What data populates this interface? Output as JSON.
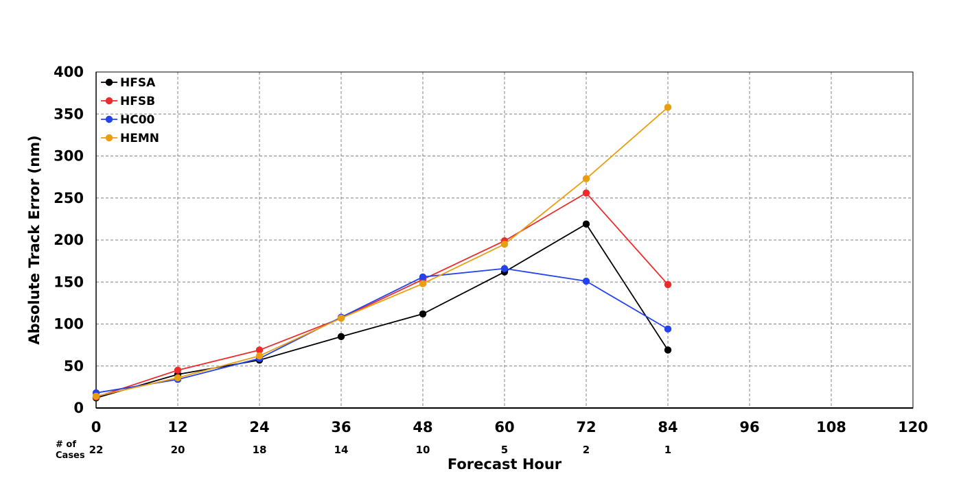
{
  "chart_data": {
    "type": "line",
    "title": "",
    "xlabel": "Forecast Hour",
    "ylabel": "Absolute Track Error (nm)",
    "xlim": [
      0,
      120
    ],
    "ylim": [
      0,
      400
    ],
    "xticks": [
      0,
      12,
      24,
      36,
      48,
      60,
      72,
      84,
      96,
      108,
      120
    ],
    "yticks": [
      0,
      50,
      100,
      150,
      200,
      250,
      300,
      350,
      400
    ],
    "grid": true,
    "legend_position": "top-left",
    "cases_header": [
      "# of",
      "Cases"
    ],
    "cases": [
      {
        "x": 0,
        "label": "22"
      },
      {
        "x": 12,
        "label": "20"
      },
      {
        "x": 24,
        "label": "18"
      },
      {
        "x": 36,
        "label": "14"
      },
      {
        "x": 48,
        "label": "10"
      },
      {
        "x": 60,
        "label": "5"
      },
      {
        "x": 72,
        "label": "2"
      },
      {
        "x": 84,
        "label": "1"
      }
    ],
    "x": [
      0,
      12,
      24,
      36,
      48,
      60,
      72,
      84
    ],
    "series": [
      {
        "name": "HFSA",
        "color": "#000000",
        "values": [
          12,
          40,
          57,
          85,
          112,
          162,
          219,
          69
        ]
      },
      {
        "name": "HFSB",
        "color": "#ee2a2a",
        "values": [
          13,
          45,
          69,
          107,
          153,
          199,
          256,
          147
        ]
      },
      {
        "name": "HC00",
        "color": "#2442ee",
        "values": [
          18,
          34,
          59,
          108,
          156,
          166,
          151,
          94
        ]
      },
      {
        "name": "HEMN",
        "color": "#e89e10",
        "values": [
          14,
          36,
          62,
          107,
          148,
          195,
          273,
          358
        ]
      }
    ]
  }
}
